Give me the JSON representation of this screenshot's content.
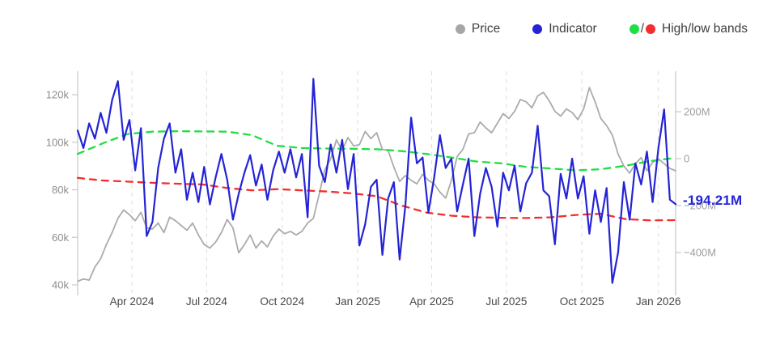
{
  "legend": {
    "items": [
      {
        "label": "Price",
        "color": "#a6a6a6"
      },
      {
        "label": "Indicator",
        "color": "#2424d6"
      },
      {
        "label": "High/low bands",
        "color": "#1fdf43",
        "color2": "#f42e2e",
        "separator": "/"
      }
    ]
  },
  "annotation": {
    "label": "-194.21M",
    "color": "#2424d6"
  },
  "chart_data": {
    "type": "line",
    "title": "",
    "x_unit": "weeks from late Jan 2024 to late Jan 2026",
    "grid": "vertical dashed only",
    "legend_position": "top-right",
    "style": {
      "grid_color": "#e0e0e0",
      "axis_color": "#c9c9c9",
      "left_label_color": "#8c8c8c",
      "right_label_color": "#9e9e9e",
      "x_label_color": "#474747"
    },
    "x_ticks": [
      {
        "label": "Apr 2024",
        "week": 9.43
      },
      {
        "label": "Jul 2024",
        "week": 22.43
      },
      {
        "label": "Oct 2024",
        "week": 35.57
      },
      {
        "label": "Jan 2025",
        "week": 48.71
      },
      {
        "label": "Apr 2025",
        "week": 61.57
      },
      {
        "label": "Jul 2025",
        "week": 74.57
      },
      {
        "label": "Oct 2025",
        "week": 87.71
      },
      {
        "label": "Jan 2026",
        "week": 101.0
      }
    ],
    "left_axis": {
      "unit": "USD thousands (price)",
      "range": [
        40,
        120
      ],
      "ticks": [
        {
          "label": "120k",
          "value": 120
        },
        {
          "label": "100k",
          "value": 100
        },
        {
          "label": "80k",
          "value": 80
        },
        {
          "label": "60k",
          "value": 60
        },
        {
          "label": "40k",
          "value": 40
        }
      ]
    },
    "right_axis": {
      "unit": "millions (indicator)",
      "range": [
        -480,
        340
      ],
      "ticks": [
        {
          "label": "200M",
          "value": 200
        },
        {
          "label": "0",
          "value": 0
        },
        {
          "label": "−200M",
          "value": -200
        },
        {
          "label": "−400M",
          "value": -400
        }
      ]
    },
    "series": [
      {
        "name": "Price",
        "axis": "left",
        "color": "#ababab",
        "width": 1.8,
        "dash": null,
        "values": [
          41.5,
          42.5,
          42.0,
          47.5,
          51.0,
          57.0,
          62.0,
          68.0,
          71.5,
          69.5,
          67.0,
          70.5,
          64.0,
          63.5,
          66.0,
          62.0,
          68.5,
          67.0,
          65.0,
          63.0,
          66.0,
          61.0,
          57.0,
          55.5,
          58.0,
          62.0,
          67.5,
          64.0,
          53.5,
          57.0,
          61.0,
          55.5,
          58.5,
          56.0,
          60.5,
          63.5,
          61.5,
          62.5,
          61.0,
          62.5,
          66.0,
          68.0,
          78.0,
          88.5,
          93.0,
          101.0,
          96.5,
          102.0,
          98.5,
          99.0,
          104.5,
          101.5,
          104.0,
          97.0,
          96.5,
          89.5,
          83.5,
          86.0,
          84.0,
          82.5,
          86.5,
          84.0,
          82.5,
          79.0,
          76.5,
          84.0,
          94.0,
          97.0,
          103.5,
          104.0,
          108.5,
          106.0,
          104.0,
          108.0,
          112.0,
          110.0,
          113.0,
          118.0,
          117.0,
          114.5,
          119.5,
          121.0,
          117.5,
          113.0,
          111.0,
          114.0,
          112.5,
          109.5,
          114.0,
          123.0,
          117.0,
          110.0,
          107.0,
          103.0,
          95.0,
          90.0,
          87.0,
          91.0,
          93.5,
          88.0,
          91.5,
          93.0,
          91.0,
          89.0,
          88.0
        ]
      },
      {
        "name": "High band",
        "axis": "right",
        "color": "#1fdf43",
        "width": 2.3,
        "dash": "8 7",
        "weeks": [
          0,
          4.33,
          8.67,
          13,
          17.33,
          21.67,
          26,
          30.33,
          34.67,
          39,
          43.33,
          47.67,
          52,
          56.33,
          60.67,
          65,
          69.33,
          73.67,
          78,
          82.33,
          86.67,
          91,
          95.33,
          99.67,
          104
        ],
        "values": [
          20,
          65,
          105,
          115,
          117,
          116,
          115,
          100,
          55,
          45,
          43,
          42,
          40,
          32,
          20,
          5,
          -12,
          -20,
          -35,
          -42,
          -50,
          -45,
          -30,
          -10,
          3
        ]
      },
      {
        "name": "Low band",
        "axis": "right",
        "color": "#f42e2e",
        "width": 2.3,
        "dash": "8 7",
        "weeks": [
          0,
          4.33,
          8.67,
          13,
          17.33,
          21.67,
          26,
          30.33,
          34.67,
          39,
          43.33,
          47.67,
          52,
          56.33,
          60.67,
          65,
          69.33,
          73.67,
          78,
          82.33,
          86.67,
          91,
          95.33,
          99.67,
          104
        ],
        "values": [
          -82,
          -93,
          -98,
          -103,
          -107,
          -110,
          -125,
          -135,
          -130,
          -135,
          -140,
          -148,
          -160,
          -200,
          -230,
          -243,
          -250,
          -252,
          -253,
          -250,
          -240,
          -235,
          -258,
          -263,
          -262
        ]
      },
      {
        "name": "Indicator",
        "axis": "right",
        "color": "#2424d6",
        "width": 2.2,
        "dash": null,
        "values": [
          120,
          45,
          150,
          85,
          195,
          110,
          250,
          330,
          80,
          165,
          -50,
          130,
          -330,
          -270,
          -40,
          85,
          150,
          -60,
          40,
          -175,
          -60,
          -185,
          -35,
          -195,
          -80,
          20,
          -90,
          -260,
          -150,
          -60,
          15,
          -115,
          -25,
          -175,
          -50,
          30,
          -60,
          40,
          -80,
          20,
          -250,
          340,
          -30,
          -100,
          60,
          -60,
          80,
          -130,
          20,
          -370,
          -280,
          -120,
          -90,
          -410,
          -170,
          -100,
          -430,
          -200,
          175,
          -20,
          5,
          -230,
          -80,
          100,
          -40,
          0,
          -225,
          -110,
          0,
          -330,
          -150,
          -40,
          -120,
          -290,
          -60,
          -135,
          -30,
          -225,
          -105,
          -60,
          140,
          -135,
          -160,
          -365,
          -65,
          -170,
          0,
          -170,
          -75,
          -320,
          -135,
          -270,
          -125,
          -530,
          -400,
          -100,
          -260,
          -20,
          -110,
          30,
          -185,
          45,
          210,
          -175,
          -194.21
        ]
      }
    ],
    "last_indicator_value": -194.21
  }
}
